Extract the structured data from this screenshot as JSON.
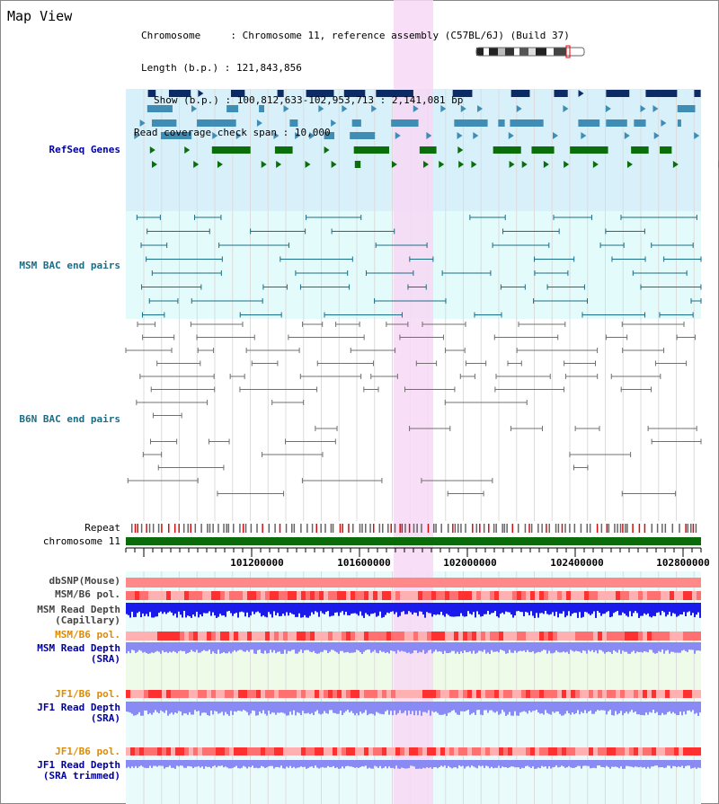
{
  "view_title": "Map View",
  "header": {
    "chromosome_label": "Chromosome",
    "chromosome_value": "Chromosome 11, reference assembly (C57BL/6J) (Build 37)",
    "length_label": "Length (b.p.)",
    "length_value": "121,843,856",
    "show_label": "Show (b.p.)",
    "show_value": "100,812,633-102,953,713 : 2,141,081 bp",
    "coverage_label": "Read coverage check span",
    "coverage_value": "10,000"
  },
  "tracks": {
    "refseq": "RefSeq Genes",
    "msm_bac": "MSM BAC end pairs",
    "b6n_bac": "B6N BAC end pairs",
    "repeat": "Repeat",
    "chromosome": "chromosome 11",
    "dbsnp": "dbSNP(Mouse)",
    "msm_b6_pol_1": "MSM/B6 pol.",
    "msm_depth_cap_1": "MSM Read Depth",
    "msm_depth_cap_2": "(Capillary)",
    "msm_b6_pol_2": "MSM/B6 pol.",
    "msm_depth_sra_1": "MSM Read Depth",
    "msm_depth_sra_2": "(SRA)",
    "jf1_b6_pol_1": "JF1/B6 pol.",
    "jf1_depth_sra_1": "JF1 Read Depth",
    "jf1_depth_sra_2": "(SRA)",
    "jf1_b6_pol_2": "JF1/B6 pol.",
    "jf1_depth_trim_1": "JF1 Read Depth",
    "jf1_depth_trim_2": "(SRA trimmed)"
  },
  "axis_ticks": [
    "101200000",
    "101600000",
    "102000000",
    "102400000",
    "102800000"
  ],
  "colors": {
    "refseq_bg": "#d8f0fa",
    "msm_bg": "#e4fbfc",
    "highlight": "#f7d8f4",
    "refseq_dark": "#0c2a63",
    "refseq_mid": "#3f8db5",
    "refseq_green": "#0a6f0a",
    "bac_teal": "#1a6d86",
    "bac_gray": "#707070",
    "chromosome": "#0b6b0b",
    "label_blue": "#0000a0",
    "label_teal": "#1a6d86",
    "label_orange": "#e08a00",
    "depth_blue": "#1a1aeb",
    "depth_light": "#8a8af5"
  }
}
